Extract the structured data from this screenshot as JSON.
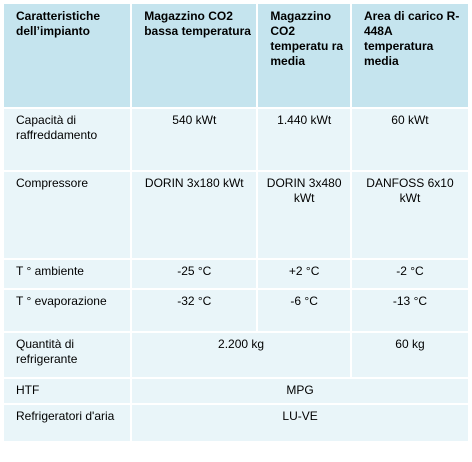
{
  "table": {
    "headers": [
      "Caratteristiche dell’impianto",
      "Magazzino CO2 bassa temperatura",
      "Magazzino CO2 temperatu ra media",
      "Area di carico R-448A temperatura media"
    ],
    "rows": {
      "capacity": {
        "label": "Capacità di raffreddamento",
        "low": "540 kWt",
        "medium": "1.440 kWt",
        "loading": "60 kWt"
      },
      "compressor": {
        "label": "Compressore",
        "low": "DORIN 3x180 kWt",
        "medium": "DORIN 3x480 kWt",
        "loading": "DANFOSS 6x10 kWt"
      },
      "ambient": {
        "label": "T ° ambiente",
        "low": "-25 °C",
        "medium": "+2 °C",
        "loading": "-2 °C"
      },
      "evaporation": {
        "label": "T ° evaporazione",
        "low": "-32 °C",
        "medium": "-6 °C",
        "loading": "-13 °C"
      },
      "refrigerant": {
        "label": "Quantità di refrigerante",
        "co2": "2.200 kg",
        "loading": "60 kg"
      },
      "htf": {
        "label": "HTF",
        "value": "MPG"
      },
      "air_coolers": {
        "label": "Refrigeratori d'aria",
        "value": "LU-VE"
      }
    }
  },
  "colors": {
    "header_bg": "#c5e4ee",
    "cell_bg": "#e9f5f9",
    "text": "#000000"
  }
}
